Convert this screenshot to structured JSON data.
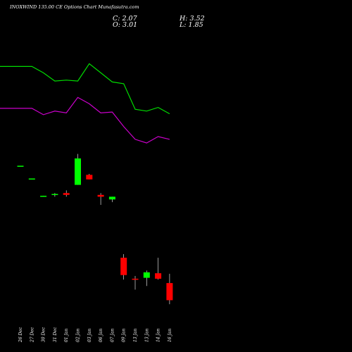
{
  "header": {
    "title": "INOXWIND 135.00 CE Options Chart Munafasutra.com",
    "close": "C: 2.07",
    "open": "O: 3.01",
    "high": "H: 3.52",
    "low": "L: 1.85"
  },
  "colors": {
    "background": "#000000",
    "up_candle": "#00ff00",
    "down_candle": "#ff0000",
    "line_upper": "#00dd00",
    "line_lower": "#cc00cc",
    "text": "#ffffff"
  },
  "chart_data": {
    "type": "candlestick",
    "categories": [
      "26 Dec",
      "27 Dec",
      "30 Dec",
      "31 Dec",
      "01 Jan",
      "02 Jan",
      "03 Jan",
      "06 Jan",
      "07 Jan",
      "09 Jan",
      "13 Jan",
      "13 Jan",
      "14 Jan",
      "16 Jan"
    ],
    "candles": [
      {
        "date": "26 Dec",
        "open": 9.45,
        "high": 9.45,
        "low": 9.45,
        "close": 9.45
      },
      {
        "date": "27 Dec",
        "open": 8.75,
        "high": 8.75,
        "low": 8.75,
        "close": 8.75
      },
      {
        "date": "30 Dec",
        "open": 7.8,
        "high": 7.8,
        "low": 7.75,
        "close": 7.8
      },
      {
        "date": "31 Dec",
        "open": 7.9,
        "high": 7.95,
        "low": 7.75,
        "close": 7.9
      },
      {
        "date": "01 Jan",
        "open": 7.95,
        "high": 8.1,
        "low": 7.75,
        "close": 7.85
      },
      {
        "date": "02 Jan",
        "open": 8.4,
        "high": 10.1,
        "low": 8.4,
        "close": 9.85
      },
      {
        "date": "03 Jan",
        "open": 8.95,
        "high": 9.0,
        "low": 8.7,
        "close": 8.7
      },
      {
        "date": "06 Jan",
        "open": 7.85,
        "high": 7.95,
        "low": 7.3,
        "close": 7.75
      },
      {
        "date": "07 Jan",
        "open": 7.6,
        "high": 7.75,
        "low": 7.45,
        "close": 7.75
      },
      {
        "date": "09 Jan",
        "open": 4.4,
        "high": 4.6,
        "low": 3.2,
        "close": 3.45
      },
      {
        "date": "13 Jan",
        "open": 3.25,
        "high": 3.4,
        "low": 2.65,
        "close": 3.2
      },
      {
        "date": "13 Jan",
        "open": 3.3,
        "high": 3.7,
        "low": 2.85,
        "close": 3.6
      },
      {
        "date": "14 Jan",
        "open": 3.55,
        "high": 4.4,
        "low": 3.2,
        "close": 3.25
      },
      {
        "date": "16 Jan",
        "open": 3.01,
        "high": 3.52,
        "low": 1.85,
        "close": 2.07
      }
    ],
    "series": [
      {
        "values": [
          14.9,
          14.9,
          14.55,
          14.1,
          14.15,
          14.1,
          15.05,
          14.55,
          14.05,
          13.95,
          12.55,
          12.45,
          12.65,
          12.3
        ]
      },
      {
        "values": [
          12.6,
          12.6,
          12.25,
          12.45,
          12.35,
          13.2,
          12.85,
          12.35,
          12.4,
          11.6,
          10.9,
          10.7,
          11.05,
          10.9
        ]
      }
    ],
    "ylim": [
      0,
      17
    ]
  }
}
